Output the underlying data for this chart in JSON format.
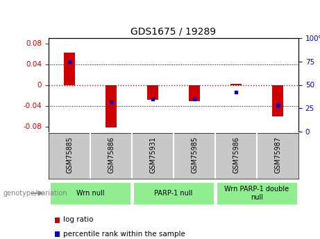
{
  "title": "GDS1675 / 19289",
  "samples": [
    "GSM75885",
    "GSM75886",
    "GSM75931",
    "GSM75985",
    "GSM75986",
    "GSM75987"
  ],
  "log_ratios": [
    0.062,
    -0.082,
    -0.028,
    -0.031,
    0.002,
    -0.06
  ],
  "percentile_ranks": [
    75,
    32,
    35,
    35,
    42,
    28
  ],
  "groups": [
    {
      "label": "Wrn null",
      "start": 0,
      "end": 2,
      "color": "#90EE90"
    },
    {
      "label": "PARP-1 null",
      "start": 2,
      "end": 4,
      "color": "#90EE90"
    },
    {
      "label": "Wrn PARP-1 double\nnull",
      "start": 4,
      "end": 6,
      "color": "#90EE90"
    }
  ],
  "bar_color_red": "#CC0000",
  "bar_color_blue": "#0000CC",
  "zero_line_color": "#CC0000",
  "ylim_left": [
    -0.09,
    0.09
  ],
  "ylim_right": [
    0,
    100
  ],
  "yticks_left": [
    -0.08,
    -0.04,
    0,
    0.04,
    0.08
  ],
  "yticks_right": [
    0,
    25,
    50,
    75,
    100
  ],
  "color_left": "#CC0000",
  "color_right": "#0000CC",
  "background_label": "#C8C8C8",
  "bar_width": 0.28,
  "genotype_label": "genotype/variation",
  "legend_log_ratio": "log ratio",
  "legend_percentile": "percentile rank within the sample"
}
